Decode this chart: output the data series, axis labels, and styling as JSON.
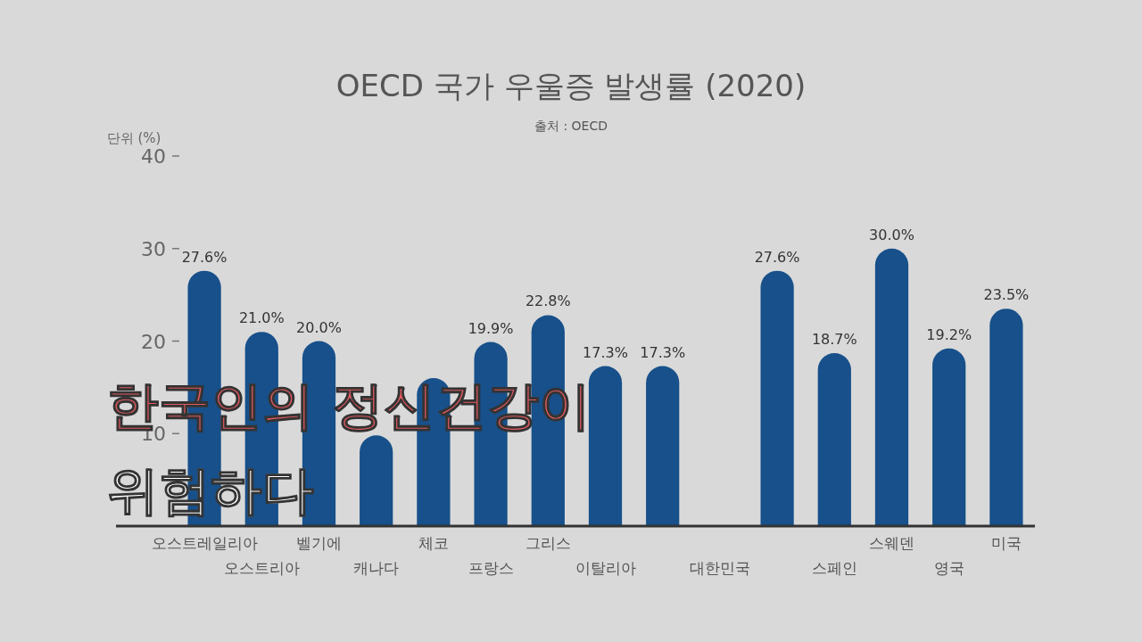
{
  "chart_data": {
    "type": "bar",
    "title": "OECD 국가 우울증 발생률 (2020)",
    "subtitle": "출처 : OECD",
    "ylabel": "단위 (%)",
    "categories": [
      "오스트레일리아",
      "오스트리아",
      "벨기에",
      "캐나다",
      "체코",
      "프랑스",
      "그리스",
      "이탈리아",
      null,
      "대한민국",
      null,
      "스페인",
      "스웨덴",
      "영국",
      "미국"
    ],
    "values": [
      27.6,
      21.0,
      20.0,
      9.8,
      16,
      19.9,
      22.8,
      17.3,
      17.3,
      null,
      27.6,
      18.7,
      30.0,
      19.2,
      23.5
    ],
    "value_labels": [
      "27.6%",
      "21.0%",
      "20.0%",
      null,
      null,
      "19.9%",
      "22.8%",
      "17.3%",
      "17.3%",
      null,
      "27.6%",
      "18.7%",
      "30.0%",
      "19.2%",
      "23.5%"
    ],
    "color": "#17508a",
    "ylim": [
      0,
      40
    ],
    "yticks": [
      10,
      20,
      30,
      40
    ],
    "annotations": [
      "한국인의 정신건강이",
      "위험하다"
    ]
  }
}
